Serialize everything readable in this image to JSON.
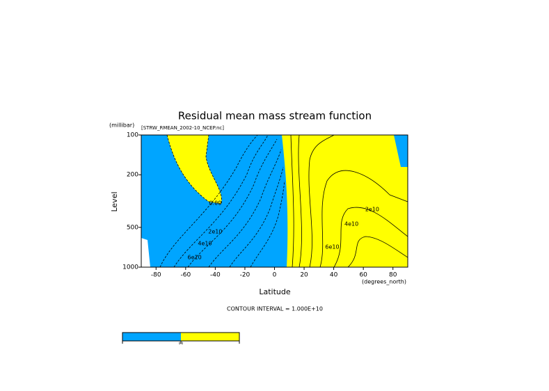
{
  "chart_data": {
    "type": "contour",
    "title": "Residual mean mass stream function",
    "subtitle": "[STRW_RMEAN_2002-10_NCEP.nc]",
    "x_label": "Latitude",
    "x_units": "(degrees_north)",
    "y_label": "Level",
    "y_units": "(millibar)",
    "xlim": [
      -90,
      90
    ],
    "xticks": [
      -80,
      -60,
      -40,
      -20,
      0,
      20,
      40,
      60,
      80
    ],
    "ylim": [
      1000,
      100
    ],
    "yticks": [
      100,
      200,
      500,
      1000
    ],
    "y_log": true,
    "negative_color": "#00a5ff",
    "positive_color": "#ffff00",
    "footer": "CONTOUR INTERVAL = 1.000E+10",
    "colorbar_label": "0.0",
    "annotations": [
      {
        "text": "0.00",
        "x": -40,
        "y": 328
      },
      {
        "text": "2e10",
        "x": 66,
        "y": 365
      },
      {
        "text": "4e10",
        "x": 52,
        "y": 472
      },
      {
        "text": "2e10",
        "x": -40,
        "y": 539
      },
      {
        "text": "4e10",
        "x": -47,
        "y": 662
      },
      {
        "text": "6e10",
        "x": -54,
        "y": 844
      },
      {
        "text": "6e10",
        "x": 39,
        "y": 703
      }
    ]
  }
}
